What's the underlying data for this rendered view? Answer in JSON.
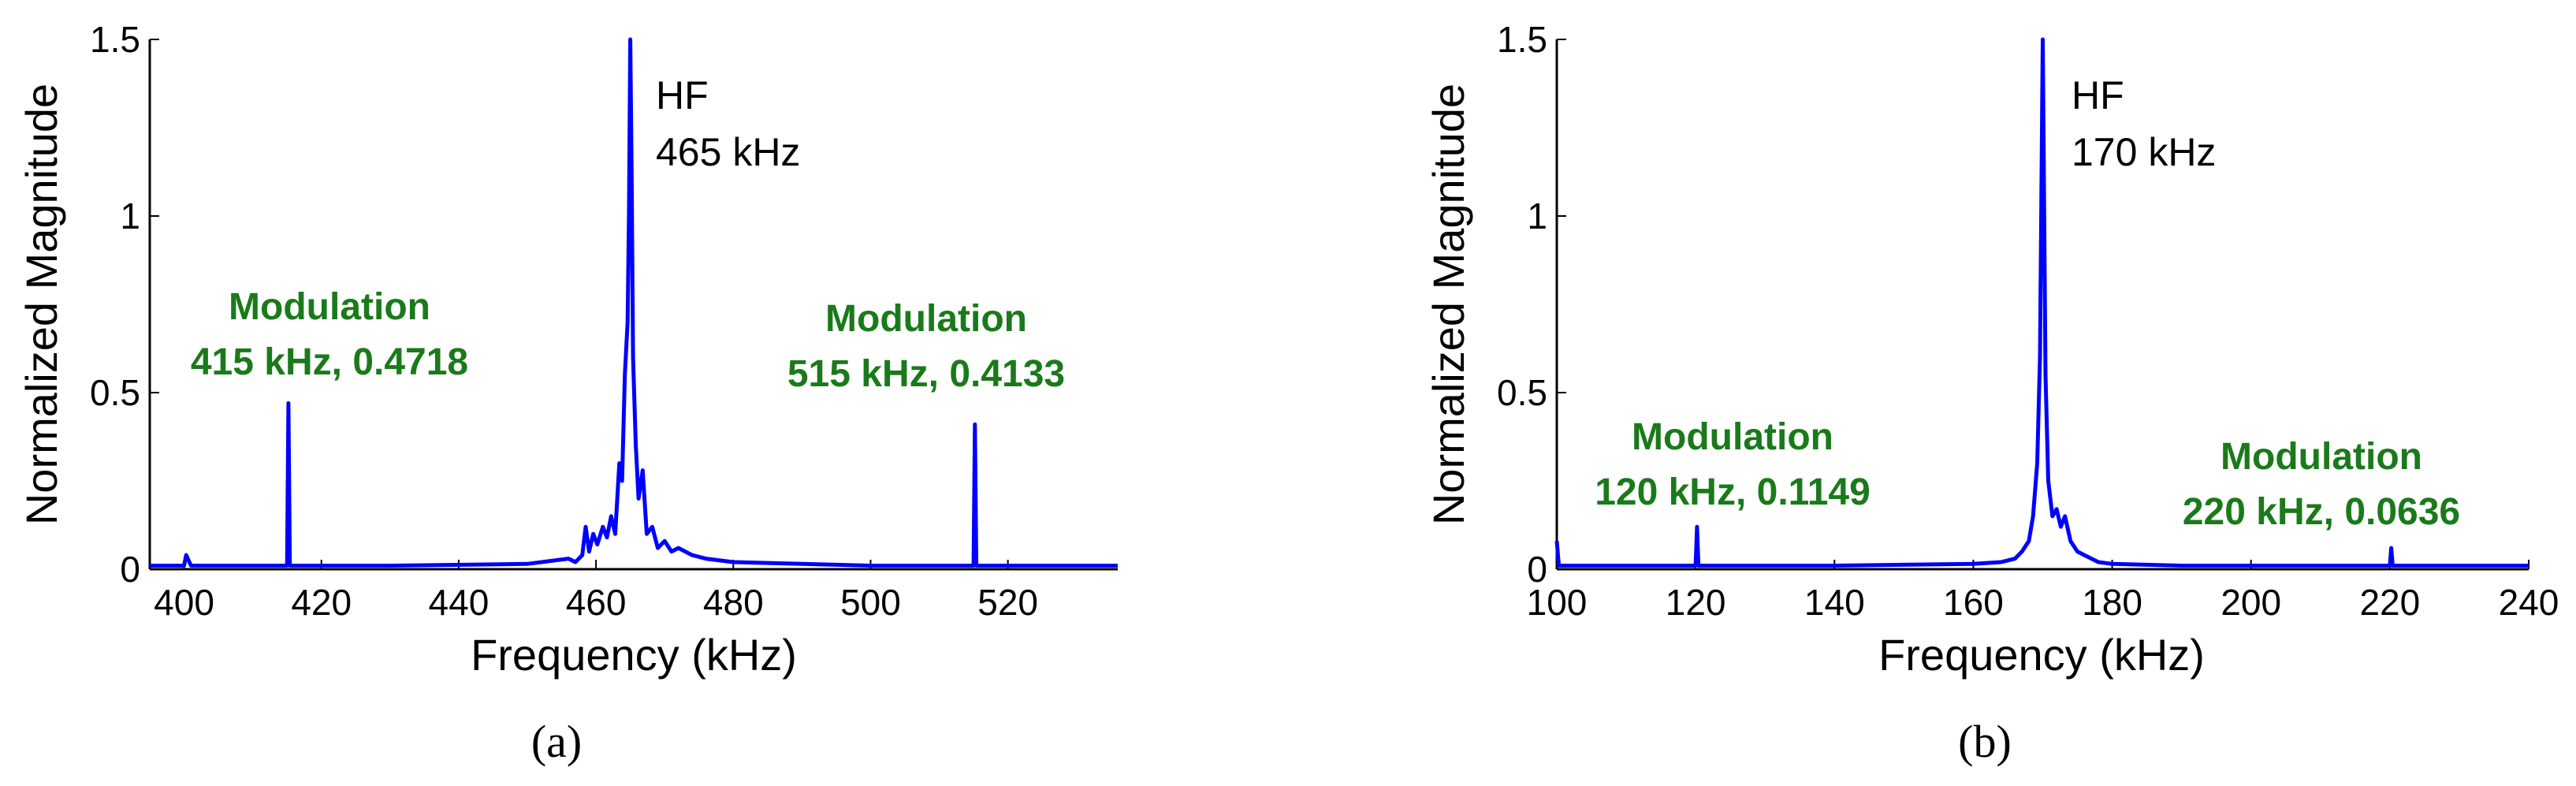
{
  "colors": {
    "series": "#0000ff",
    "modulation": "#1a7a1a",
    "hf": "#000000",
    "axis": "#000000"
  },
  "chart_data": [
    {
      "type": "line",
      "caption": "(a)",
      "xlabel": "Frequency (kHz)",
      "ylabel": "Normalized Magnitude",
      "xlim": [
        395,
        536
      ],
      "ylim": [
        0,
        1.5
      ],
      "xticks": [
        "400",
        "420",
        "440",
        "460",
        "480",
        "500",
        "520"
      ],
      "yticks": [
        "0",
        "0.5",
        "1",
        "1.5"
      ],
      "grid": false,
      "series": [
        {
          "x": [
            395,
            400,
            400.3,
            401,
            410,
            415,
            415.2,
            415.4,
            416,
            430,
            450,
            456,
            457,
            458,
            458.5,
            459,
            459.6,
            460.2,
            461,
            461.6,
            462.2,
            462.8,
            463.4,
            463.8,
            464.2,
            464.6,
            464.8,
            465,
            465.2,
            465.4,
            465.8,
            466.2,
            466.8,
            467.4,
            468.2,
            469,
            470,
            471,
            472,
            474,
            476,
            480,
            490,
            500,
            510,
            515,
            515.2,
            515.4,
            516,
            525,
            536
          ],
          "values": [
            0.01,
            0.01,
            0.04,
            0.01,
            0.01,
            0.01,
            0.47,
            0.01,
            0.01,
            0.01,
            0.015,
            0.03,
            0.02,
            0.04,
            0.12,
            0.05,
            0.1,
            0.07,
            0.12,
            0.09,
            0.15,
            0.1,
            0.3,
            0.25,
            0.55,
            0.7,
            1.0,
            1.5,
            1.1,
            0.6,
            0.35,
            0.2,
            0.28,
            0.1,
            0.12,
            0.06,
            0.08,
            0.05,
            0.06,
            0.04,
            0.03,
            0.02,
            0.015,
            0.01,
            0.01,
            0.01,
            0.41,
            0.01,
            0.01,
            0.01,
            0.01
          ]
        }
      ],
      "annotations": [
        {
          "lines": [
            "HF",
            "465 kHz"
          ],
          "kind": "hf"
        },
        {
          "lines": [
            "Modulation",
            "415 kHz, 0.4718"
          ],
          "kind": "modulation"
        },
        {
          "lines": [
            "Modulation",
            "515 kHz, 0.4133"
          ],
          "kind": "modulation"
        }
      ]
    },
    {
      "type": "line",
      "caption": "(b)",
      "xlabel": "Frequency (kHz)",
      "ylabel": "Normalized Magnitude",
      "xlim": [
        100,
        240
      ],
      "ylim": [
        0,
        1.5
      ],
      "xticks": [
        "100",
        "120",
        "140",
        "160",
        "180",
        "200",
        "220",
        "240"
      ],
      "yticks": [
        "0",
        "0.5",
        "1",
        "1.5"
      ],
      "grid": false,
      "series": [
        {
          "x": [
            100,
            100.3,
            101,
            110,
            120,
            120.2,
            120.4,
            121,
            140,
            160,
            164,
            166,
            167,
            168,
            168.6,
            169.2,
            169.6,
            170,
            170.4,
            170.8,
            171.4,
            172,
            172.6,
            173.2,
            174,
            175,
            176,
            178,
            180,
            190,
            200,
            210,
            220,
            220.2,
            220.4,
            221,
            230,
            240
          ],
          "values": [
            0.08,
            0.01,
            0.01,
            0.01,
            0.01,
            0.12,
            0.01,
            0.01,
            0.01,
            0.015,
            0.02,
            0.03,
            0.05,
            0.08,
            0.15,
            0.3,
            0.6,
            1.5,
            0.55,
            0.25,
            0.15,
            0.17,
            0.12,
            0.15,
            0.08,
            0.05,
            0.04,
            0.02,
            0.015,
            0.01,
            0.01,
            0.01,
            0.01,
            0.06,
            0.01,
            0.01,
            0.01,
            0.01
          ]
        }
      ],
      "annotations": [
        {
          "lines": [
            "HF",
            "170 kHz"
          ],
          "kind": "hf"
        },
        {
          "lines": [
            "Modulation",
            "120 kHz, 0.1149"
          ],
          "kind": "modulation"
        },
        {
          "lines": [
            "Modulation",
            "220 kHz, 0.0636"
          ],
          "kind": "modulation"
        }
      ]
    }
  ]
}
